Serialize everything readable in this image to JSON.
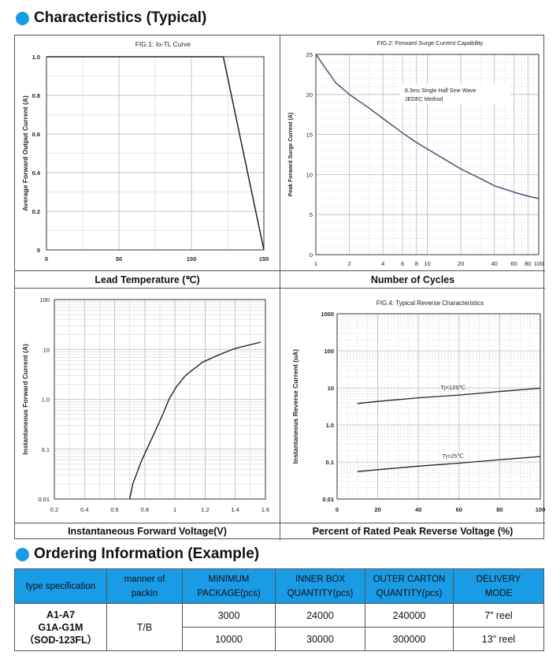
{
  "section1": {
    "title": "Characteristics (Typical)"
  },
  "section2": {
    "title": "Ordering Information (Example)"
  },
  "chart_data": [
    {
      "type": "line",
      "title": "FIG.1: Io-TL Curve",
      "xlabel": "Lead Temperature (℃)",
      "ylabel": "Average Forward Output Current (A)",
      "xlim": [
        0,
        150
      ],
      "ylim": [
        0,
        1.0
      ],
      "xticks": [
        0,
        50,
        100,
        150
      ],
      "yticks": [
        0,
        0.2,
        0.4,
        0.6,
        0.8,
        1.0
      ],
      "ytick_labels": [
        "0",
        "0.2",
        "0.4",
        "0.6",
        "0.8",
        "1.0"
      ],
      "grid": true,
      "series": [
        {
          "x": [
            0,
            122,
            150
          ],
          "y": [
            1.0,
            1.0,
            0.0
          ]
        }
      ]
    },
    {
      "type": "line",
      "title": "FIG.2: Forward Surge Current Capability",
      "xlabel": "Number of Cycles",
      "ylabel": "Peak Forward Surge Current (A)",
      "x_scale": "log",
      "xlim": [
        1,
        100
      ],
      "ylim": [
        0,
        25
      ],
      "xticks": [
        1,
        2,
        4,
        6,
        8,
        10,
        20,
        40,
        60,
        80,
        100
      ],
      "yticks": [
        0,
        5,
        10,
        15,
        20,
        25
      ],
      "grid": true,
      "annotation": [
        "8.3ms Single Half Sine Wave",
        "JEDEC Method"
      ],
      "series": [
        {
          "x": [
            1,
            1.5,
            2,
            3,
            4,
            6,
            8,
            10,
            20,
            30,
            40,
            60,
            80,
            100
          ],
          "y": [
            25,
            21.5,
            20,
            18.3,
            17,
            15.2,
            14,
            13.2,
            10.7,
            9.5,
            8.6,
            7.8,
            7.3,
            7
          ]
        }
      ]
    },
    {
      "type": "line",
      "xlabel": "Instantaneous Forward Voltage(V)",
      "ylabel": "Instantaneous Forward Current (A)",
      "y_scale": "log",
      "xlim": [
        0.2,
        1.6
      ],
      "ylim": [
        0.01,
        100
      ],
      "xticks": [
        0.2,
        0.4,
        0.6,
        0.8,
        1.0,
        1.2,
        1.4,
        1.6
      ],
      "yticks": [
        0.01,
        0.1,
        1.0,
        10,
        100
      ],
      "ytick_labels": [
        "0.01",
        "0.1",
        "1.0",
        "10",
        "100"
      ],
      "grid": true,
      "series": [
        {
          "x": [
            0.7,
            0.72,
            0.78,
            0.86,
            0.92,
            0.96,
            1.01,
            1.07,
            1.18,
            1.3,
            1.4,
            1.57
          ],
          "y": [
            0.01,
            0.02,
            0.06,
            0.2,
            0.5,
            1.0,
            1.8,
            3,
            5.5,
            8,
            10.5,
            14
          ]
        }
      ]
    },
    {
      "type": "line",
      "title": "FIG.4: Typical Reverse Characteristics",
      "xlabel": "Percent of Rated Peak Reverse Voltage (%)",
      "ylabel": "Instantaneous Reverse Current (uA)",
      "y_scale": "log",
      "xlim": [
        0,
        100
      ],
      "ylim": [
        0.01,
        1000
      ],
      "xticks": [
        0,
        20,
        40,
        60,
        80,
        100
      ],
      "yticks": [
        0.01,
        0.1,
        1.0,
        10,
        100,
        1000
      ],
      "ytick_labels": [
        "0.01",
        "0.1",
        "1.0",
        "10",
        "100",
        "1000"
      ],
      "grid": true,
      "series": [
        {
          "name": "Tj=125℃",
          "x": [
            10,
            20,
            40,
            60,
            80,
            100
          ],
          "y": [
            3.8,
            4.3,
            5.4,
            6.4,
            8,
            9.8
          ]
        },
        {
          "name": "Tj=25℃",
          "x": [
            10,
            20,
            40,
            60,
            80,
            100
          ],
          "y": [
            0.055,
            0.062,
            0.077,
            0.093,
            0.115,
            0.14
          ]
        }
      ]
    }
  ],
  "ordering": {
    "headers": [
      [
        "type specification"
      ],
      [
        "manner of",
        "packin"
      ],
      [
        "MINIMUM",
        "PACKAGE(pcs)"
      ],
      [
        "INNER BOX",
        "QUANTITY(pcs)"
      ],
      [
        "OUTER CARTON",
        "QUANTITY(pcs)"
      ],
      [
        "DELIVERY",
        "MODE"
      ]
    ],
    "spec": [
      "A1-A7",
      "G1A-G1M",
      "（SOD-123FL）"
    ],
    "manner": "T/B",
    "rows": [
      {
        "min_package": "3000",
        "inner_box": "24000",
        "outer_carton": "240000",
        "delivery": "7” reel"
      },
      {
        "min_package": "10000",
        "inner_box": "30000",
        "outer_carton": "300000",
        "delivery": "13” reel"
      }
    ],
    "header_color": "#1a9be6"
  }
}
